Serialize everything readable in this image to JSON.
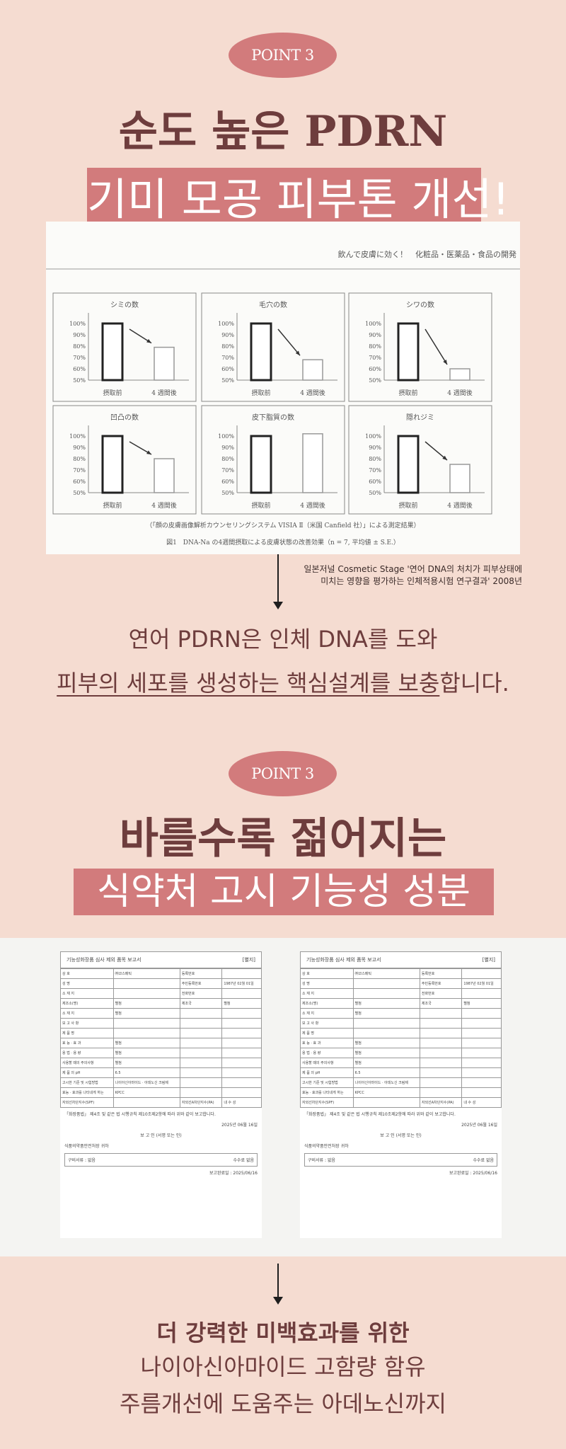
{
  "section1": {
    "badge": "POINT 3",
    "title_line1": "순도 높은 PDRN",
    "title_line2": "기미 모공 피부톤 개선!",
    "source_line1": "일본저널 Cosmetic Stage '연어 DNA의 처치가 피부상태에",
    "source_line2": "미치는 영향을 평가하는 인체적용시험 연구결과' 2008년",
    "body_line1": "연어 PDRN은 인체 DNA를 도와",
    "body_line2_underlined": "피부의 세포를 생성하는 핵심설계를 보충",
    "body_line2_rest": "합니다."
  },
  "chart_data": {
    "type": "bar",
    "header": "飲んで皮膚に効く！　化粧品・医薬品・食品の開発",
    "note": "（「顔の皮膚画像解析カウンセリングシステム VISIA Ⅱ（米国 Canfield 社）」による測定結果）",
    "caption": "図1　DNA-Na の4週間摂取による皮膚状態の改善効果（n = 7, 平均値 ± S.E.）",
    "categories": [
      "摂取前",
      "4 週間後"
    ],
    "yticks": [
      "100%",
      "90%",
      "80%",
      "70%",
      "60%",
      "50%"
    ],
    "ylim": [
      50,
      100
    ],
    "grid": false,
    "panels": [
      {
        "title": "シミの数",
        "values": [
          100,
          79
        ],
        "arrow": true
      },
      {
        "title": "毛穴の数",
        "values": [
          100,
          68
        ],
        "arrow": true
      },
      {
        "title": "シワの数",
        "values": [
          100,
          60
        ],
        "arrow": true
      },
      {
        "title": "凹凸の数",
        "values": [
          100,
          80
        ],
        "arrow": true
      },
      {
        "title": "皮下脂質の数",
        "values": [
          100,
          102
        ],
        "arrow": false
      },
      {
        "title": "隠れジミ",
        "values": [
          100,
          75
        ],
        "arrow": true
      }
    ]
  },
  "section2": {
    "badge": "POINT 3",
    "title_line1": "바를수록 젊어지는",
    "title_line2": "식약처 고시 기능성 성분",
    "body_line1": "더 강력한 미백효과를 위한",
    "body_line2": "나이아신아마이드 고함량 함유",
    "body_line3": "주름개선에 도움주는 아데노신까지"
  },
  "document": {
    "title": "기능성화장품 심사 제외 품목 보고서",
    "tag": "[별지]",
    "rows": [
      [
        "상 호",
        "㈜코스메틱",
        "등록번호",
        ""
      ],
      [
        "성 명",
        "",
        "주민등록번호",
        "1987년 02월 01일"
      ],
      [
        "소 재 지",
        "",
        "전화번호",
        ""
      ],
      [
        "제조소(명)",
        "별첨",
        "제조국",
        "별첨"
      ],
      [
        "소 재 지",
        "별첨",
        "",
        ""
      ],
      [
        "보 고 사 항",
        "",
        "",
        ""
      ],
      [
        "제 품 명",
        "",
        "",
        ""
      ],
      [
        "효 능 · 효 과",
        "별첨",
        "",
        ""
      ],
      [
        "용 법 · 용 량",
        "별첨",
        "",
        ""
      ],
      [
        "사용할 때의 주의사항",
        "별첨",
        "",
        ""
      ],
      [
        "제 품 의 pH",
        "6.5",
        "",
        ""
      ],
      [
        "고시한 기준 및 시험방법",
        "나이아신아마이드 · 아데노신 크림제",
        "",
        ""
      ],
      [
        "효능 · 효과를 나타내게 하는",
        "KPCC",
        "",
        ""
      ],
      [
        "자외선차단지수(SPF)",
        "",
        "자외선A차단지수(PA)",
        "내 수 성"
      ]
    ],
    "statement": "「화장품법」 제4조 및 같은 법 시행규칙 제10조제2항에 따라 위와 같이 보고합니다.",
    "date": "2025년 06월 16일",
    "reporter": "보 고 인",
    "sign": "(서명 또는 인)",
    "recipient": "식품의약품안전처장 귀하",
    "attachment": "구비서류 : 없음",
    "fee": "수수료 없음",
    "bottom_date": "보고완료일 : 2025/06/16"
  },
  "colors": {
    "background": "#f5dcd1",
    "accent": "#d27b7c",
    "text": "#6e3d3d"
  }
}
